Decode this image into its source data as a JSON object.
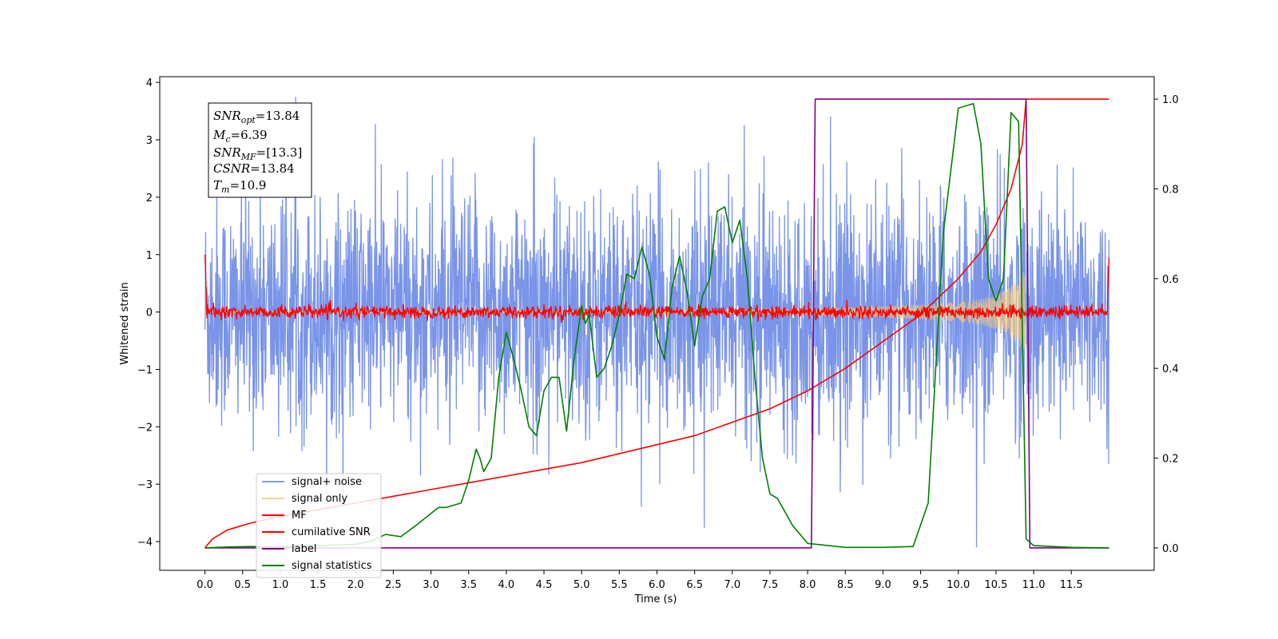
{
  "chart_data": {
    "type": "line",
    "title": "",
    "xlabel": "Time (s)",
    "ylabel": "Whitened strain",
    "y2label": "",
    "xlim": [
      -0.6,
      12.6
    ],
    "ylim": [
      -4.5,
      4.1
    ],
    "y2lim": [
      -0.05,
      1.05
    ],
    "x_ticks": [
      "0.0",
      "0.5",
      "1.0",
      "1.5",
      "2.0",
      "2.5",
      "3.0",
      "3.5",
      "4.0",
      "4.5",
      "5.0",
      "5.5",
      "6.0",
      "6.5",
      "7.0",
      "7.5",
      "8.0",
      "8.5",
      "9.0",
      "9.5",
      "10.0",
      "10.5",
      "11.0",
      "11.5"
    ],
    "y_ticks": [
      "4",
      "3",
      "2",
      "1",
      "0",
      "−1",
      "−2",
      "−3",
      "−4"
    ],
    "y2_ticks": [
      "1.0",
      "0.8",
      "0.6",
      "0.4",
      "0.2",
      "0.0"
    ],
    "grid": false,
    "legend_position": "lower-left",
    "annotation": {
      "snr_opt": "13.84",
      "mc": "6.39",
      "snr_mf": "[13.3]",
      "csnr": "13.84",
      "tm": "10.9"
    },
    "series": [
      {
        "name": "signal+ noise",
        "color": "#6a88e6",
        "axis": "left",
        "noise_band": [
          -2.0,
          2.0
        ],
        "duration": 12.0
      },
      {
        "name": "signal only",
        "color": "#f5c97a",
        "axis": "left",
        "envelope": {
          "x": [
            0.0,
            2.0,
            4.0,
            6.0,
            7.0,
            8.0,
            9.0,
            9.5,
            10.0,
            10.3,
            10.5,
            10.7,
            10.8,
            10.9
          ],
          "y": [
            0.01,
            0.015,
            0.02,
            0.03,
            0.04,
            0.06,
            0.1,
            0.13,
            0.18,
            0.23,
            0.3,
            0.45,
            0.6,
            0.75
          ]
        }
      },
      {
        "name": "MF",
        "color": "#ff0000",
        "axis": "left",
        "noise_band": [
          -0.15,
          0.15
        ]
      },
      {
        "name": "cumilative SNR",
        "color": "#ff0000",
        "axis": "right",
        "x": [
          0.0,
          0.1,
          0.3,
          0.6,
          1.0,
          1.5,
          2.0,
          2.5,
          3.0,
          3.5,
          4.0,
          4.5,
          5.0,
          5.5,
          6.0,
          6.5,
          7.0,
          7.5,
          8.0,
          8.5,
          9.0,
          9.5,
          10.0,
          10.3,
          10.5,
          10.7,
          10.85,
          10.9,
          11.0,
          11.5,
          12.0
        ],
        "y": [
          0.0,
          0.02,
          0.04,
          0.055,
          0.07,
          0.085,
          0.1,
          0.115,
          0.13,
          0.145,
          0.16,
          0.175,
          0.19,
          0.21,
          0.23,
          0.25,
          0.28,
          0.31,
          0.35,
          0.4,
          0.46,
          0.52,
          0.6,
          0.66,
          0.72,
          0.8,
          0.9,
          1.0,
          1.0,
          1.0,
          1.0
        ]
      },
      {
        "name": "label",
        "color": "#800080",
        "axis": "right",
        "x": [
          0.0,
          8.05,
          8.1,
          10.9,
          10.95,
          11.0,
          12.0
        ],
        "y": [
          0.0,
          0.0,
          1.0,
          1.0,
          0.0,
          0.0,
          0.0
        ]
      },
      {
        "name": "signal statistics",
        "color": "#008000",
        "axis": "right",
        "x": [
          0.0,
          0.3,
          0.6,
          1.0,
          1.5,
          2.0,
          2.2,
          2.4,
          2.6,
          2.8,
          2.95,
          3.1,
          3.2,
          3.4,
          3.5,
          3.6,
          3.65,
          3.7,
          3.8,
          3.9,
          4.0,
          4.1,
          4.2,
          4.3,
          4.4,
          4.5,
          4.6,
          4.7,
          4.8,
          4.9,
          5.0,
          5.05,
          5.1,
          5.2,
          5.3,
          5.4,
          5.5,
          5.6,
          5.7,
          5.8,
          5.9,
          6.0,
          6.1,
          6.2,
          6.3,
          6.4,
          6.5,
          6.6,
          6.7,
          6.8,
          6.9,
          7.0,
          7.1,
          7.2,
          7.3,
          7.4,
          7.5,
          7.6,
          7.8,
          8.0,
          8.5,
          9.0,
          9.4,
          9.6,
          9.8,
          10.0,
          10.2,
          10.3,
          10.4,
          10.5,
          10.6,
          10.7,
          10.8,
          10.9,
          11.0,
          11.5,
          12.0
        ],
        "y": [
          0.0,
          0.002,
          0.003,
          0.002,
          0.005,
          0.008,
          0.015,
          0.03,
          0.025,
          0.05,
          0.07,
          0.09,
          0.09,
          0.1,
          0.15,
          0.22,
          0.2,
          0.17,
          0.2,
          0.38,
          0.48,
          0.42,
          0.35,
          0.27,
          0.25,
          0.35,
          0.38,
          0.38,
          0.26,
          0.42,
          0.54,
          0.5,
          0.52,
          0.38,
          0.4,
          0.45,
          0.52,
          0.61,
          0.6,
          0.67,
          0.61,
          0.47,
          0.42,
          0.58,
          0.65,
          0.57,
          0.45,
          0.56,
          0.6,
          0.75,
          0.76,
          0.68,
          0.73,
          0.6,
          0.38,
          0.2,
          0.12,
          0.11,
          0.05,
          0.01,
          0.001,
          0.001,
          0.003,
          0.1,
          0.7,
          0.98,
          0.99,
          0.9,
          0.6,
          0.55,
          0.6,
          0.97,
          0.95,
          0.02,
          0.005,
          0.001,
          0.0
        ]
      }
    ]
  }
}
